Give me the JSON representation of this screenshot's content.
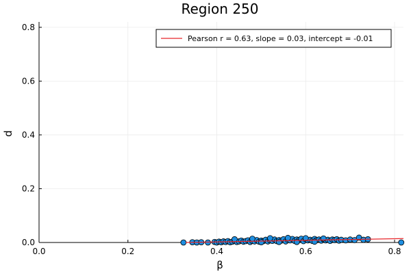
{
  "chart_data": {
    "type": "scatter",
    "title": "Region 250",
    "xlabel": "β",
    "ylabel": "d",
    "xlim": [
      0.0,
      0.82
    ],
    "ylim": [
      0.0,
      0.82
    ],
    "xticks": [
      0.0,
      0.2,
      0.4,
      0.6,
      0.8
    ],
    "xtick_labels": [
      "0.0",
      "0.2",
      "0.4",
      "0.6",
      "0.8"
    ],
    "yticks": [
      0.0,
      0.2,
      0.4,
      0.6,
      0.8
    ],
    "ytick_labels": [
      "0.0",
      "0.2",
      "0.4",
      "0.6",
      "0.8"
    ],
    "grid": true,
    "legend_position": "top-right",
    "colors": {
      "points": "#1f8ee0",
      "fit_line": "#e8262b",
      "grid": "#ebebeb"
    },
    "fit_line": {
      "label": "Pearson r = 0.63, slope = 0.03, intercept = -0.01",
      "slope": 0.03,
      "intercept": -0.01,
      "x": [
        0.33,
        0.82
      ]
    },
    "points": [
      [
        0.325,
        0.0
      ],
      [
        0.345,
        0.001
      ],
      [
        0.355,
        0.0
      ],
      [
        0.365,
        0.001
      ],
      [
        0.38,
        0.0
      ],
      [
        0.395,
        0.002
      ],
      [
        0.4,
        0.0
      ],
      [
        0.405,
        0.003
      ],
      [
        0.41,
        0.001
      ],
      [
        0.415,
        0.004
      ],
      [
        0.42,
        0.002
      ],
      [
        0.425,
        0.005
      ],
      [
        0.43,
        0.001
      ],
      [
        0.435,
        0.003
      ],
      [
        0.44,
        0.006
      ],
      [
        0.445,
        0.002
      ],
      [
        0.45,
        0.004
      ],
      [
        0.455,
        0.007
      ],
      [
        0.46,
        0.003
      ],
      [
        0.465,
        0.005
      ],
      [
        0.47,
        0.008
      ],
      [
        0.475,
        0.002
      ],
      [
        0.48,
        0.006
      ],
      [
        0.485,
        0.004
      ],
      [
        0.49,
        0.009
      ],
      [
        0.495,
        0.003
      ],
      [
        0.5,
        0.007
      ],
      [
        0.505,
        0.005
      ],
      [
        0.51,
        0.01
      ],
      [
        0.515,
        0.004
      ],
      [
        0.52,
        0.008
      ],
      [
        0.525,
        0.006
      ],
      [
        0.53,
        0.011
      ],
      [
        0.535,
        0.005
      ],
      [
        0.54,
        0.009
      ],
      [
        0.545,
        0.007
      ],
      [
        0.55,
        0.012
      ],
      [
        0.555,
        0.004
      ],
      [
        0.56,
        0.01
      ],
      [
        0.565,
        0.008
      ],
      [
        0.57,
        0.013
      ],
      [
        0.575,
        0.006
      ],
      [
        0.58,
        0.011
      ],
      [
        0.585,
        0.009
      ],
      [
        0.59,
        0.014
      ],
      [
        0.595,
        0.005
      ],
      [
        0.6,
        0.012
      ],
      [
        0.605,
        0.008
      ],
      [
        0.61,
        0.01
      ],
      [
        0.615,
        0.006
      ],
      [
        0.62,
        0.013
      ],
      [
        0.625,
        0.009
      ],
      [
        0.63,
        0.011
      ],
      [
        0.635,
        0.007
      ],
      [
        0.64,
        0.012
      ],
      [
        0.645,
        0.008
      ],
      [
        0.65,
        0.01
      ],
      [
        0.655,
        0.006
      ],
      [
        0.66,
        0.011
      ],
      [
        0.665,
        0.009
      ],
      [
        0.67,
        0.012
      ],
      [
        0.675,
        0.007
      ],
      [
        0.68,
        0.01
      ],
      [
        0.69,
        0.008
      ],
      [
        0.7,
        0.011
      ],
      [
        0.71,
        0.009
      ],
      [
        0.72,
        0.018
      ],
      [
        0.73,
        0.01
      ],
      [
        0.74,
        0.012
      ],
      [
        0.815,
        0.0
      ],
      [
        0.44,
        0.012
      ],
      [
        0.48,
        0.014
      ],
      [
        0.52,
        0.016
      ],
      [
        0.56,
        0.017
      ],
      [
        0.6,
        0.016
      ],
      [
        0.64,
        0.015
      ],
      [
        0.58,
        0.002
      ],
      [
        0.62,
        0.003
      ],
      [
        0.5,
        0.001
      ],
      [
        0.54,
        0.002
      ]
    ]
  }
}
